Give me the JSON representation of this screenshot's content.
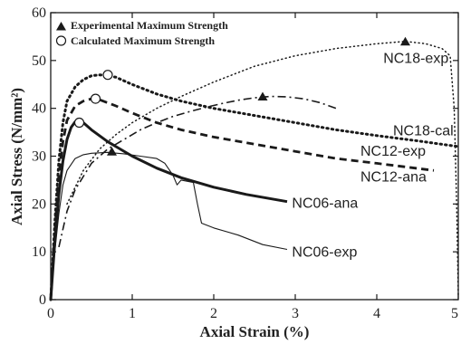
{
  "chart_data": {
    "type": "line",
    "title": "",
    "xlabel": "Axial Strain (%)",
    "ylabel": "Axial Stress (N/mm²)",
    "xlim": [
      0,
      5
    ],
    "ylim": [
      0,
      60
    ],
    "xticks": [
      0,
      1,
      2,
      3,
      4,
      5
    ],
    "yticks": [
      0,
      10,
      20,
      30,
      40,
      50,
      60
    ],
    "grid": false,
    "legend_position": "top-left",
    "legend": [
      {
        "marker": "filled-triangle",
        "label": "Experimental Maximum Strength"
      },
      {
        "marker": "open-circle",
        "label": "Calculated Maximum Strength"
      }
    ],
    "series": [
      {
        "name": "NC06-ana",
        "style": "solid-thick",
        "x": [
          0,
          0.05,
          0.1,
          0.15,
          0.2,
          0.25,
          0.3,
          0.35,
          0.4,
          0.5,
          0.7,
          1.0,
          1.3,
          1.6,
          2.0,
          2.4,
          2.9
        ],
        "y": [
          0,
          12,
          22,
          29,
          33.5,
          36,
          37.2,
          37.5,
          37,
          35.5,
          33,
          30,
          27.5,
          25.5,
          23.5,
          22,
          20.5
        ]
      },
      {
        "name": "NC06-exp",
        "style": "solid-thin",
        "x": [
          0,
          0.05,
          0.1,
          0.15,
          0.2,
          0.3,
          0.4,
          0.5,
          0.7,
          0.9,
          1.1,
          1.3,
          1.4,
          1.5,
          1.55,
          1.6,
          1.75,
          1.8,
          1.85,
          2.0,
          2.3,
          2.6,
          2.9
        ],
        "y": [
          0,
          10,
          18,
          24,
          27,
          29.5,
          30.3,
          30.6,
          30.8,
          30.5,
          30,
          29.5,
          28.5,
          26,
          24,
          25,
          24.5,
          20,
          16,
          15,
          13.5,
          11.5,
          10.5
        ]
      },
      {
        "name": "NC12-exp",
        "style": "dashed-thick",
        "x": [
          0,
          0.05,
          0.1,
          0.15,
          0.2,
          0.3,
          0.4,
          0.5,
          0.6,
          0.8,
          1.0,
          1.3,
          1.6,
          2.0,
          2.5,
          3.0,
          3.5,
          4.0,
          4.7
        ],
        "y": [
          0,
          14,
          26,
          33,
          37.5,
          40.5,
          41.5,
          42,
          41.8,
          40.5,
          39,
          37,
          35.5,
          34,
          32.5,
          31,
          29.5,
          28.5,
          27
        ]
      },
      {
        "name": "NC12-ana",
        "style": "dash-dot",
        "x": [
          0.1,
          0.2,
          0.3,
          0.5,
          0.7,
          0.9,
          1.1,
          1.3,
          1.5,
          1.7,
          1.9,
          2.1,
          2.3,
          2.5,
          2.7,
          2.9,
          3.1,
          3.3,
          3.5
        ],
        "y": [
          11,
          18.5,
          23,
          28.5,
          31.5,
          33.5,
          35.5,
          37,
          38.3,
          39.3,
          40.2,
          41,
          41.7,
          42.2,
          42.5,
          42.4,
          42,
          41.2,
          40
        ]
      },
      {
        "name": "NC18-cal",
        "style": "dotted-thick",
        "x": [
          0,
          0.05,
          0.1,
          0.15,
          0.2,
          0.3,
          0.4,
          0.5,
          0.6,
          0.7,
          0.8,
          1.0,
          1.3,
          1.6,
          2.0,
          2.5,
          3.0,
          3.5,
          4.0,
          4.5,
          5.0
        ],
        "y": [
          0,
          16,
          29,
          37,
          41.5,
          44.5,
          46,
          46.8,
          47,
          46.8,
          46.5,
          45,
          43,
          41.5,
          40,
          38.5,
          37,
          35.5,
          34.3,
          33.2,
          32
        ]
      },
      {
        "name": "NC18-exp",
        "style": "dotted-thin",
        "x": [
          0.2,
          0.4,
          0.6,
          0.8,
          1.0,
          1.3,
          1.6,
          2.0,
          2.5,
          3.0,
          3.5,
          4.0,
          4.35,
          4.6,
          4.8,
          4.9,
          4.95,
          4.98,
          5.0
        ],
        "y": [
          20,
          27,
          31.5,
          34.5,
          37,
          40,
          42.5,
          45.5,
          48.8,
          51,
          52.5,
          53.5,
          54,
          53.5,
          52.5,
          51,
          40,
          20,
          1
        ]
      }
    ],
    "experimental_max_points": [
      {
        "x": 0.75,
        "y": 31
      },
      {
        "x": 2.6,
        "y": 42.5
      },
      {
        "x": 4.35,
        "y": 54
      }
    ],
    "calculated_max_points": [
      {
        "x": 0.35,
        "y": 37
      },
      {
        "x": 0.55,
        "y": 42
      },
      {
        "x": 0.7,
        "y": 47
      }
    ],
    "series_labels": [
      {
        "text": "NC18-exp",
        "series": "NC18-exp",
        "at_x": 4.08,
        "at_y": 49.5
      },
      {
        "text": "NC18-cal",
        "series": "NC18-cal",
        "at_x": 4.2,
        "at_y": 34.4
      },
      {
        "text": "NC12-exp",
        "series": "NC12-exp",
        "at_x": 3.8,
        "at_y": 30.1
      },
      {
        "text": "NC12-ana",
        "series": "NC12-ana",
        "at_x": 3.8,
        "at_y": 24.7
      },
      {
        "text": "NC06-ana",
        "series": "NC06-ana",
        "at_x": 2.96,
        "at_y": 19.2
      },
      {
        "text": "NC06-exp",
        "series": "NC06-exp",
        "at_x": 2.96,
        "at_y": 9.0
      }
    ]
  }
}
